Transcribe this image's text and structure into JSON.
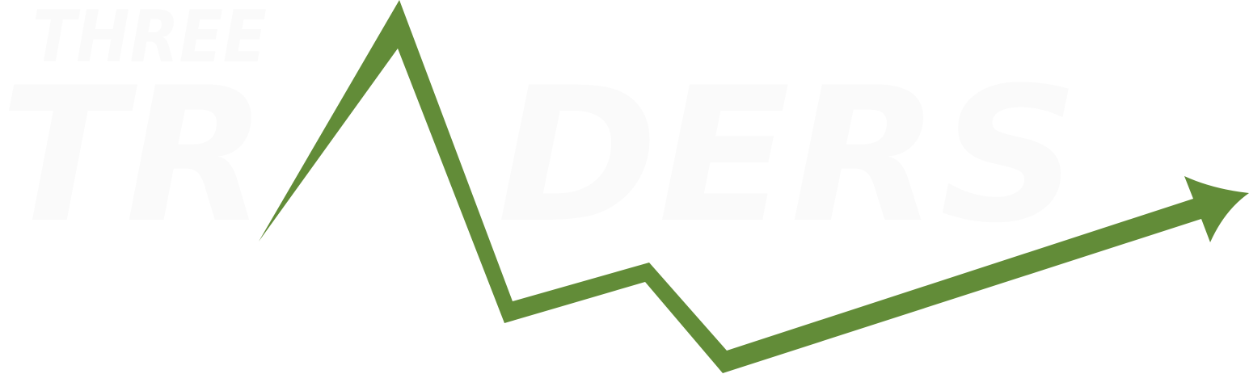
{
  "logo": {
    "small_word": "THREE",
    "left_word": "TR",
    "right_word": "DERS",
    "text_color": "#fafafa",
    "arrow_color": "#628c38",
    "background": "#ffffff"
  }
}
